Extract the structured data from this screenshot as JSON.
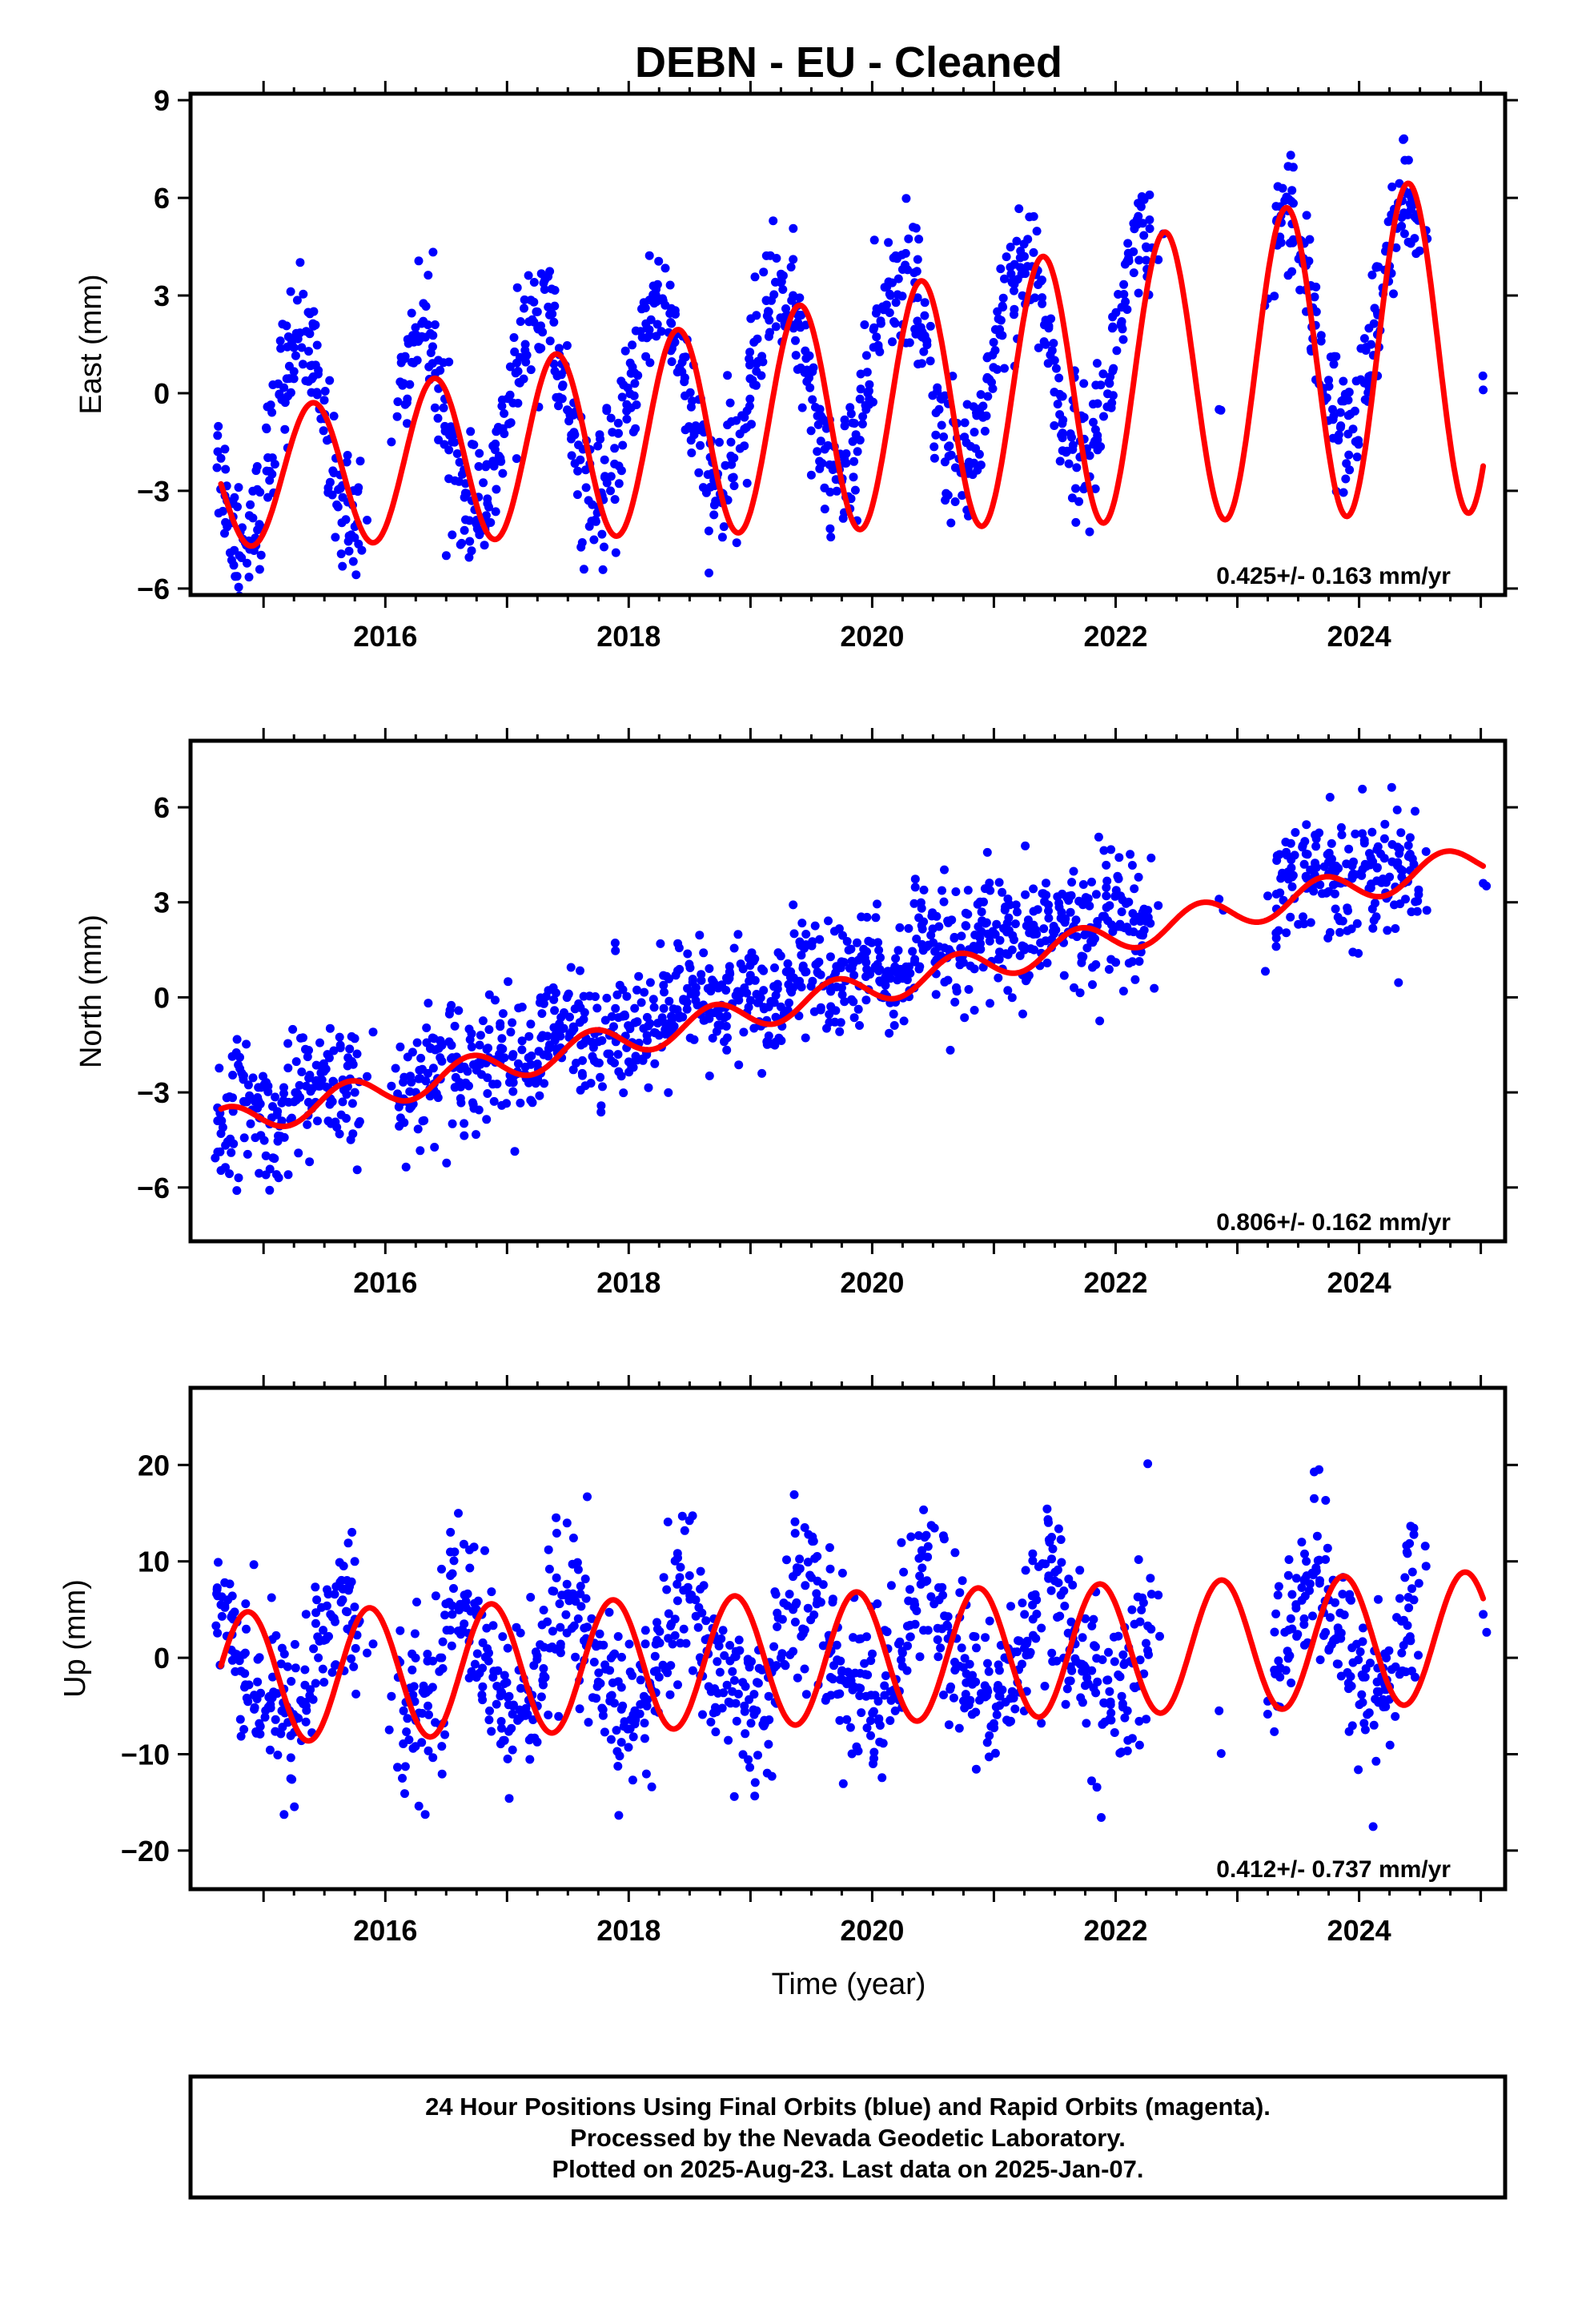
{
  "title": "DEBN  - EU - Cleaned",
  "x_axis_label": "Time (year)",
  "footer": {
    "line1": "24 Hour Positions Using Final Orbits (blue) and Rapid Orbits (magenta).",
    "line2": "Processed by the Nevada Geodetic Laboratory.",
    "line3": "Plotted on 2025-Aug-23. Last data on 2025-Jan-07."
  },
  "colors": {
    "points": "#0000ff",
    "model": "#ff0000",
    "frame": "#000000"
  },
  "chart_data": [
    {
      "type": "scatter",
      "ylabel": "East (mm)",
      "rate_text": "0.425+/- 0.163 mm/yr",
      "xlim": [
        2014.4,
        2025.2
      ],
      "ylim": [
        -6.2,
        9.2
      ],
      "xticks": [
        2016,
        2018,
        2020,
        2022,
        2024
      ],
      "yticks": [
        -6,
        -3,
        0,
        3,
        6,
        9
      ],
      "ytick_labels": [
        "−6",
        "−3",
        "0",
        "3",
        "6",
        "9"
      ],
      "model": {
        "offset": -0.6,
        "rate": 0.425,
        "amp": 3.6,
        "amp_growth": 0.09,
        "phase": 0.15,
        "ref_year": 2019.8
      },
      "noise": 1.0,
      "x": [
        2014.65,
        2014.75,
        2014.85,
        2014.95,
        2015.05,
        2015.15,
        2015.25,
        2015.35,
        2015.45,
        2015.55,
        2015.65,
        2015.75,
        2015.85,
        2016.05,
        2016.15,
        2016.25,
        2016.35,
        2016.45,
        2016.55,
        2016.65,
        2016.75,
        2016.85,
        2016.95,
        2017.05,
        2017.15,
        2017.25,
        2017.35,
        2017.45,
        2017.55,
        2017.65,
        2017.75,
        2017.85,
        2017.95,
        2018.05,
        2018.15,
        2018.25,
        2018.35,
        2018.45,
        2018.55,
        2018.65,
        2018.75,
        2018.85,
        2018.95,
        2019.05,
        2019.15,
        2019.25,
        2019.35,
        2019.45,
        2019.55,
        2019.65,
        2019.75,
        2019.85,
        2019.95,
        2020.05,
        2020.15,
        2020.25,
        2020.35,
        2020.45,
        2020.55,
        2020.65,
        2020.75,
        2020.85,
        2020.95,
        2021.05,
        2021.15,
        2021.25,
        2021.35,
        2021.45,
        2021.55,
        2021.65,
        2021.75,
        2021.85,
        2021.95,
        2022.05,
        2022.15,
        2022.25,
        2022.35,
        2022.85,
        2023.25,
        2023.35,
        2023.45,
        2023.55,
        2023.65,
        2023.75,
        2023.85,
        2023.95,
        2024.05,
        2024.15,
        2024.25,
        2024.35,
        2024.45,
        2024.55,
        2025.02
      ],
      "y": [
        -2.0,
        -3.8,
        -4.6,
        -4.2,
        -2.4,
        -0.2,
        1.4,
        1.9,
        0.7,
        -1.4,
        -3.2,
        -4.1,
        -3.9,
        -1.5,
        0.3,
        1.8,
        2.1,
        0.7,
        -1.5,
        -3.2,
        -3.9,
        -3.5,
        -2.1,
        -0.3,
        1.5,
        2.5,
        2.4,
        0.9,
        -1.2,
        -2.9,
        -3.5,
        -3.0,
        -1.6,
        0.3,
        2.0,
        2.9,
        2.6,
        1.1,
        -1.0,
        -2.5,
        -3.1,
        -2.6,
        -1.1,
        0.9,
        2.5,
        3.4,
        3.0,
        1.3,
        -0.7,
        -2.2,
        -2.7,
        -2.1,
        -0.5,
        1.4,
        3.0,
        3.8,
        3.4,
        1.6,
        -0.5,
        -1.9,
        -2.3,
        -1.7,
        -0.1,
        1.8,
        3.4,
        4.2,
        3.8,
        2.0,
        -0.1,
        -1.6,
        -1.9,
        -1.3,
        0.3,
        2.2,
        3.7,
        4.5,
        4.1,
        -0.5,
        2.9,
        4.8,
        5.2,
        4.6,
        2.5,
        0.4,
        -1.0,
        -1.1,
        -0.2,
        1.8,
        3.9,
        5.4,
        5.8,
        5.0,
        0.1
      ]
    },
    {
      "type": "scatter",
      "ylabel": "North (mm)",
      "rate_text": "0.806+/- 0.162 mm/yr",
      "xlim": [
        2014.4,
        2025.2
      ],
      "ylim": [
        -7.7,
        8.1
      ],
      "xticks": [
        2016,
        2018,
        2020,
        2022,
        2024
      ],
      "yticks": [
        -6,
        -3,
        0,
        3,
        6
      ],
      "ytick_labels": [
        "−6",
        "−3",
        "0",
        "3",
        "6"
      ],
      "model": {
        "offset": 0.15,
        "rate": 0.806,
        "amp": 0.5,
        "amp_growth": 0.0,
        "phase": 0.45,
        "ref_year": 2019.8
      },
      "noise": 1.0,
      "x": [
        2014.65,
        2014.75,
        2014.85,
        2014.95,
        2015.05,
        2015.15,
        2015.25,
        2015.35,
        2015.45,
        2015.55,
        2015.65,
        2015.75,
        2015.85,
        2016.05,
        2016.15,
        2016.25,
        2016.35,
        2016.45,
        2016.55,
        2016.65,
        2016.75,
        2016.85,
        2016.95,
        2017.05,
        2017.15,
        2017.25,
        2017.35,
        2017.45,
        2017.55,
        2017.65,
        2017.75,
        2017.85,
        2017.95,
        2018.05,
        2018.15,
        2018.25,
        2018.35,
        2018.45,
        2018.55,
        2018.65,
        2018.75,
        2018.85,
        2018.95,
        2019.05,
        2019.15,
        2019.25,
        2019.35,
        2019.45,
        2019.55,
        2019.65,
        2019.75,
        2019.85,
        2019.95,
        2020.05,
        2020.15,
        2020.25,
        2020.35,
        2020.45,
        2020.55,
        2020.65,
        2020.75,
        2020.85,
        2020.95,
        2021.05,
        2021.15,
        2021.25,
        2021.35,
        2021.45,
        2021.55,
        2021.65,
        2021.75,
        2021.85,
        2021.95,
        2022.05,
        2022.15,
        2022.25,
        2022.35,
        2022.85,
        2023.25,
        2023.35,
        2023.45,
        2023.55,
        2023.65,
        2023.75,
        2023.85,
        2023.95,
        2024.05,
        2024.15,
        2024.25,
        2024.35,
        2024.45,
        2024.55,
        2025.02
      ],
      "y": [
        -3.9,
        -3.6,
        -3.3,
        -3.5,
        -4.0,
        -3.9,
        -3.3,
        -2.8,
        -2.8,
        -3.2,
        -3.3,
        -3.0,
        -2.5,
        -2.8,
        -3.2,
        -3.0,
        -2.4,
        -1.9,
        -1.9,
        -2.2,
        -2.3,
        -1.9,
        -1.6,
        -1.8,
        -2.2,
        -2.1,
        -1.5,
        -1.0,
        -1.0,
        -1.3,
        -1.4,
        -1.1,
        -0.6,
        -0.8,
        -1.2,
        -1.2,
        -0.6,
        -0.1,
        -0.1,
        -0.4,
        -0.6,
        -0.2,
        0.3,
        0.1,
        -0.3,
        -0.3,
        0.3,
        0.8,
        0.8,
        0.5,
        0.3,
        0.7,
        1.1,
        0.9,
        0.6,
        0.6,
        1.2,
        1.6,
        1.6,
        1.4,
        1.1,
        1.5,
        2.0,
        1.8,
        1.5,
        1.5,
        2.0,
        2.5,
        2.5,
        2.2,
        2.0,
        2.4,
        2.9,
        2.7,
        2.4,
        2.4,
        2.9,
        3.1,
        3.2,
        3.3,
        3.8,
        4.2,
        4.1,
        3.9,
        3.6,
        3.9,
        4.2,
        4.1,
        3.8,
        3.8,
        4.2,
        4.6,
        3.6
      ]
    },
    {
      "type": "scatter",
      "ylabel": "Up (mm)",
      "rate_text": "0.412+/- 0.737 mm/yr",
      "xlim": [
        2014.4,
        2025.2
      ],
      "ylim": [
        -24,
        28
      ],
      "xticks": [
        2016,
        2018,
        2020,
        2022,
        2024
      ],
      "yticks": [
        -20,
        -10,
        0,
        10,
        20
      ],
      "ytick_labels": [
        "−20",
        "−10",
        "0",
        "10",
        "20"
      ],
      "model": {
        "offset": 0.0,
        "rate": 0.412,
        "amp": 6.8,
        "amp_growth": 0.0,
        "phase": 0.62,
        "ref_year": 2019.8
      },
      "noise": 4.5,
      "x": [
        2014.65,
        2014.75,
        2014.85,
        2014.95,
        2015.05,
        2015.15,
        2015.25,
        2015.35,
        2015.45,
        2015.55,
        2015.65,
        2015.75,
        2015.85,
        2016.05,
        2016.15,
        2016.25,
        2016.35,
        2016.45,
        2016.55,
        2016.65,
        2016.75,
        2016.85,
        2016.95,
        2017.05,
        2017.15,
        2017.25,
        2017.35,
        2017.45,
        2017.55,
        2017.65,
        2017.75,
        2017.85,
        2017.95,
        2018.05,
        2018.15,
        2018.25,
        2018.35,
        2018.45,
        2018.55,
        2018.65,
        2018.75,
        2018.85,
        2018.95,
        2019.05,
        2019.15,
        2019.25,
        2019.35,
        2019.45,
        2019.55,
        2019.65,
        2019.75,
        2019.85,
        2019.95,
        2020.05,
        2020.15,
        2020.25,
        2020.35,
        2020.45,
        2020.55,
        2020.65,
        2020.75,
        2020.85,
        2020.95,
        2021.05,
        2021.15,
        2021.25,
        2021.35,
        2021.45,
        2021.55,
        2021.65,
        2021.75,
        2021.85,
        2021.95,
        2022.05,
        2022.15,
        2022.25,
        2022.35,
        2022.85,
        2023.25,
        2023.35,
        2023.45,
        2023.55,
        2023.65,
        2023.75,
        2023.85,
        2023.95,
        2024.05,
        2024.15,
        2024.25,
        2024.35,
        2024.45,
        2024.55,
        2025.02
      ],
      "y": [
        5.5,
        4.0,
        0.5,
        -2.5,
        -4.0,
        -5.5,
        -6.5,
        -5.0,
        0.0,
        4.5,
        6.0,
        4.0,
        0.5,
        -4.0,
        -5.5,
        -6.5,
        -5.0,
        0.0,
        4.5,
        6.5,
        5.0,
        0.5,
        -3.5,
        -5.0,
        -6.0,
        -5.0,
        1.0,
        6.5,
        6.5,
        2.0,
        -2.5,
        -4.0,
        -5.0,
        -5.5,
        -5.0,
        -2.0,
        3.5,
        7.0,
        6.0,
        2.0,
        -1.5,
        -3.5,
        -5.0,
        -5.5,
        -4.0,
        0.0,
        5.0,
        7.5,
        6.0,
        2.0,
        -1.5,
        -3.0,
        -4.0,
        -4.5,
        -3.5,
        0.5,
        5.5,
        8.0,
        6.0,
        2.0,
        -1.0,
        -2.5,
        -3.5,
        -4.0,
        -3.5,
        1.0,
        6.0,
        8.5,
        6.5,
        2.0,
        -1.0,
        -2.5,
        -3.5,
        -4.0,
        -3.0,
        1.5,
        6.5,
        -5.5,
        -4.5,
        -2.0,
        3.0,
        8.0,
        9.0,
        6.0,
        2.0,
        -0.5,
        -2.0,
        -3.5,
        -3.0,
        0.5,
        6.0,
        9.5,
        4.5
      ]
    }
  ]
}
